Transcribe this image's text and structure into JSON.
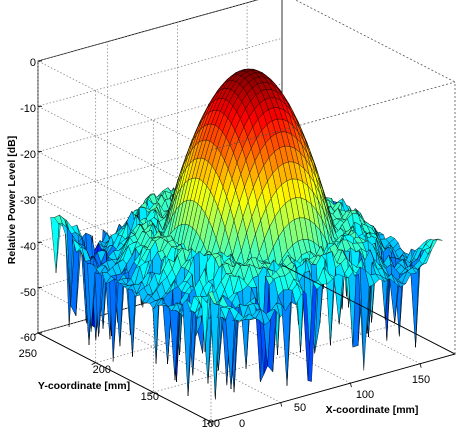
{
  "chart_data": {
    "type": "surface",
    "title": "",
    "zlabel": "Relative Power Level [dB]",
    "ylabel": "Y-coordinate [mm]",
    "xlabel": "X-coordinate [mm]",
    "zlim": [
      -60,
      0
    ],
    "ylim": [
      100,
      250
    ],
    "xlim": [
      0,
      175
    ],
    "z_ticks": [
      "0",
      "-10",
      "-20",
      "-30",
      "-40",
      "-50",
      "-60"
    ],
    "y_ticks": [
      "250",
      "200",
      "150",
      "100"
    ],
    "x_ticks": [
      "0",
      "50",
      "100",
      "150"
    ],
    "peak": {
      "x": 90,
      "y": 175,
      "z": 0
    },
    "main_lobe_width_mm": 55,
    "sidelobe_floor_db": -36,
    "grid": true,
    "box": true,
    "colormap": "jet"
  }
}
